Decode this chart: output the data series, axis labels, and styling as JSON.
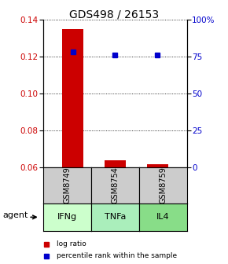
{
  "title": "GDS498 / 26153",
  "samples": [
    "GSM8749",
    "GSM8754",
    "GSM8759"
  ],
  "agents": [
    "IFNg",
    "TNFa",
    "IL4"
  ],
  "bar_bottoms": [
    0.06,
    0.06,
    0.06
  ],
  "bar_tops": [
    0.135,
    0.064,
    0.062
  ],
  "percentile_values": [
    0.1225,
    0.121,
    0.121
  ],
  "ylim": [
    0.06,
    0.14
  ],
  "yticks_left": [
    0.06,
    0.08,
    0.1,
    0.12,
    0.14
  ],
  "yticks_right_labels": [
    "0",
    "25",
    "50",
    "75",
    "100%"
  ],
  "yticks_right_pct": [
    0,
    25,
    50,
    75,
    100
  ],
  "bar_color": "#cc0000",
  "percentile_color": "#0000cc",
  "bar_width": 0.5,
  "cell_gray": "#cccccc",
  "agent_colors": [
    "#ccffcc",
    "#aaeebb",
    "#88dd88"
  ],
  "legend_bar_label": "log ratio",
  "legend_pct_label": "percentile rank within the sample",
  "agent_label": "agent",
  "title_fontsize": 10,
  "tick_fontsize": 7.5,
  "legend_fontsize": 6.5,
  "agent_fontsize": 8,
  "sample_fontsize": 7
}
